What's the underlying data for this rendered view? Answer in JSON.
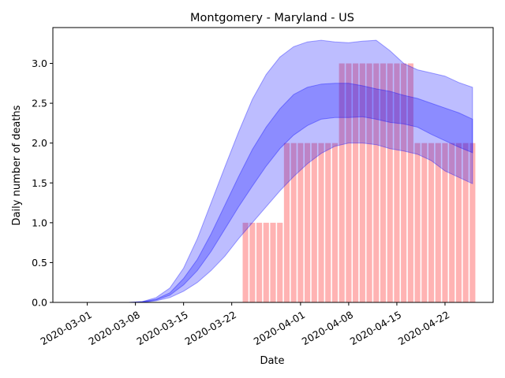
{
  "chart_data": {
    "type": "bar",
    "title": "Montgomery - Maryland - US",
    "xlabel": "Date",
    "ylabel": "Daily number of deaths",
    "xlim": [
      "2020-02-25",
      "2020-04-29"
    ],
    "ylim": [
      0,
      3.45
    ],
    "grid": false,
    "legend": "none",
    "x_ticks": [
      "2020-03-01",
      "2020-03-08",
      "2020-03-15",
      "2020-03-22",
      "2020-04-01",
      "2020-04-08",
      "2020-04-15",
      "2020-04-22"
    ],
    "y_ticks": [
      "0.0",
      "0.5",
      "1.0",
      "1.5",
      "2.0",
      "2.5",
      "3.0"
    ],
    "colors": {
      "bars": "#ff9999",
      "band_outer": "#0000ff",
      "band_inner": "#0000ff"
    },
    "bars": {
      "dates": [
        "2020-03-24",
        "2020-03-25",
        "2020-03-26",
        "2020-03-27",
        "2020-03-28",
        "2020-03-29",
        "2020-03-30",
        "2020-03-31",
        "2020-04-01",
        "2020-04-02",
        "2020-04-03",
        "2020-04-04",
        "2020-04-05",
        "2020-04-06",
        "2020-04-07",
        "2020-04-08",
        "2020-04-09",
        "2020-04-10",
        "2020-04-11",
        "2020-04-12",
        "2020-04-13",
        "2020-04-14",
        "2020-04-15",
        "2020-04-16",
        "2020-04-17",
        "2020-04-18",
        "2020-04-19",
        "2020-04-20",
        "2020-04-21",
        "2020-04-22",
        "2020-04-23",
        "2020-04-24",
        "2020-04-25",
        "2020-04-26"
      ],
      "values": [
        1,
        1,
        1,
        1,
        1,
        1,
        2,
        2,
        2,
        2,
        2,
        2,
        2,
        2,
        3,
        3,
        3,
        3,
        3,
        3,
        3,
        3,
        3,
        3,
        3,
        2,
        2,
        2,
        2,
        2,
        2,
        2,
        2,
        2
      ]
    },
    "bands": {
      "dates": [
        "2020-03-01",
        "2020-03-03",
        "2020-03-05",
        "2020-03-07",
        "2020-03-09",
        "2020-03-11",
        "2020-03-13",
        "2020-03-15",
        "2020-03-17",
        "2020-03-19",
        "2020-03-21",
        "2020-03-23",
        "2020-03-25",
        "2020-03-27",
        "2020-03-29",
        "2020-03-31",
        "2020-04-02",
        "2020-04-04",
        "2020-04-06",
        "2020-04-08",
        "2020-04-10",
        "2020-04-12",
        "2020-04-14",
        "2020-04-16",
        "2020-04-18",
        "2020-04-20",
        "2020-04-22",
        "2020-04-24",
        "2020-04-26"
      ],
      "outer_low": [
        0,
        0,
        0,
        0,
        0.0,
        0.02,
        0.06,
        0.14,
        0.25,
        0.4,
        0.58,
        0.8,
        1.0,
        1.2,
        1.4,
        1.58,
        1.74,
        1.87,
        1.96,
        2.0,
        2.0,
        1.98,
        1.93,
        1.9,
        1.86,
        1.78,
        1.65,
        1.57,
        1.49
      ],
      "outer_high": [
        0,
        0,
        0,
        0,
        0.01,
        0.06,
        0.18,
        0.43,
        0.8,
        1.25,
        1.7,
        2.14,
        2.55,
        2.86,
        3.08,
        3.21,
        3.27,
        3.29,
        3.27,
        3.26,
        3.28,
        3.29,
        3.16,
        3.0,
        2.92,
        2.88,
        2.84,
        2.76,
        2.7
      ],
      "inner_low": [
        0,
        0,
        0,
        0,
        0.0,
        0.03,
        0.09,
        0.22,
        0.4,
        0.64,
        0.92,
        1.2,
        1.46,
        1.71,
        1.93,
        2.1,
        2.22,
        2.3,
        2.32,
        2.32,
        2.33,
        2.3,
        2.26,
        2.24,
        2.2,
        2.11,
        2.03,
        1.95,
        1.88
      ],
      "inner_high": [
        0,
        0,
        0,
        0,
        0.01,
        0.04,
        0.12,
        0.3,
        0.54,
        0.86,
        1.22,
        1.58,
        1.92,
        2.2,
        2.43,
        2.61,
        2.7,
        2.74,
        2.75,
        2.75,
        2.72,
        2.68,
        2.65,
        2.6,
        2.56,
        2.5,
        2.44,
        2.38,
        2.3
      ]
    }
  }
}
